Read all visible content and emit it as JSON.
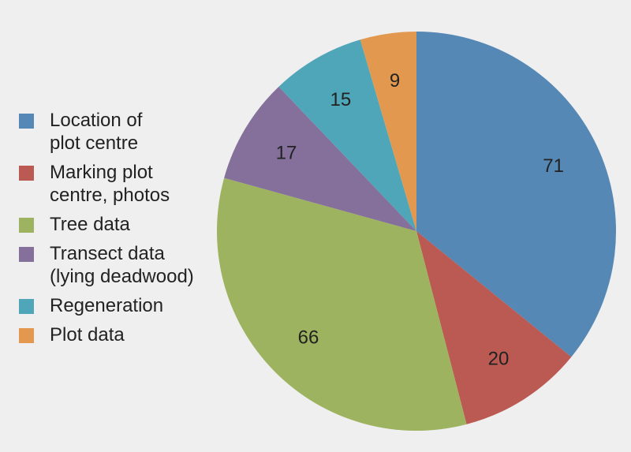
{
  "chart_data": {
    "type": "pie",
    "title": "",
    "slices": [
      {
        "label": "Location of\nplot centre",
        "value": 71,
        "color": "#5588b4"
      },
      {
        "label": "Marking plot\ncentre, photos",
        "value": 20,
        "color": "#bb5a52"
      },
      {
        "label": "Tree data",
        "value": 66,
        "color": "#9db35f"
      },
      {
        "label": "Transect data\n(lying deadwood)",
        "value": 17,
        "color": "#84709b"
      },
      {
        "label": "Regeneration",
        "value": 15,
        "color": "#4fa6b8"
      },
      {
        "label": "Plot data",
        "value": 9,
        "color": "#e2994f"
      }
    ],
    "data_labels": [
      "71",
      "20",
      "66",
      "17",
      "15",
      "9"
    ],
    "start_angle": "12 o'clock",
    "direction": "clockwise",
    "legend_position": "left"
  }
}
